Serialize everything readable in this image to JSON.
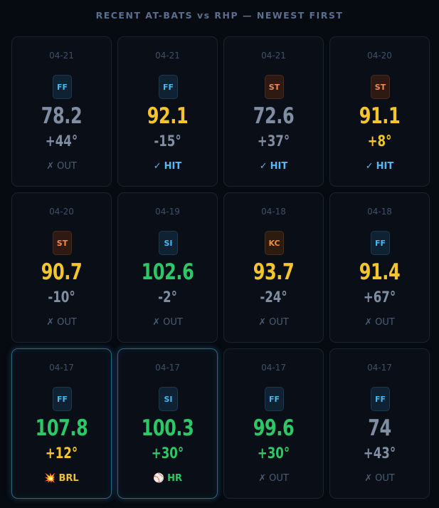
{
  "header": {
    "title": "RECENT AT-BATS vs RHP — NEWEST FIRST"
  },
  "legend_colors": {
    "ev_soft": "#7f8ea3",
    "ev_medium": "#f5c52b",
    "ev_hard": "#2cc766",
    "pitch_fastball": "#48b6ef",
    "pitch_breaking": "#f08a4f"
  },
  "at_bats": [
    {
      "date": "04-21",
      "pitch": "FF",
      "ev": "78.2",
      "la": "+44°",
      "result_icon": "✗",
      "result": "OUT",
      "ev_tier": "gray",
      "la_tier": "gray",
      "result_type": "out",
      "highlight": false
    },
    {
      "date": "04-21",
      "pitch": "FF",
      "ev": "92.1",
      "la": "-15°",
      "result_icon": "✓",
      "result": "HIT",
      "ev_tier": "yellow",
      "la_tier": "gray",
      "result_type": "hit",
      "highlight": false
    },
    {
      "date": "04-21",
      "pitch": "ST",
      "ev": "72.6",
      "la": "+37°",
      "result_icon": "✓",
      "result": "HIT",
      "ev_tier": "gray",
      "la_tier": "gray",
      "result_type": "hit",
      "highlight": false
    },
    {
      "date": "04-20",
      "pitch": "ST",
      "ev": "91.1",
      "la": "+8°",
      "result_icon": "✓",
      "result": "HIT",
      "ev_tier": "yellow",
      "la_tier": "yellow",
      "result_type": "hit",
      "highlight": false
    },
    {
      "date": "04-20",
      "pitch": "ST",
      "ev": "90.7",
      "la": "-10°",
      "result_icon": "✗",
      "result": "OUT",
      "ev_tier": "yellow",
      "la_tier": "gray",
      "result_type": "out",
      "highlight": false
    },
    {
      "date": "04-19",
      "pitch": "SI",
      "ev": "102.6",
      "la": "-2°",
      "result_icon": "✗",
      "result": "OUT",
      "ev_tier": "green",
      "la_tier": "gray",
      "result_type": "out",
      "highlight": false
    },
    {
      "date": "04-18",
      "pitch": "KC",
      "ev": "93.7",
      "la": "-24°",
      "result_icon": "✗",
      "result": "OUT",
      "ev_tier": "yellow",
      "la_tier": "gray",
      "result_type": "out",
      "highlight": false
    },
    {
      "date": "04-18",
      "pitch": "FF",
      "ev": "91.4",
      "la": "+67°",
      "result_icon": "✗",
      "result": "OUT",
      "ev_tier": "yellow",
      "la_tier": "gray",
      "result_type": "out",
      "highlight": false
    },
    {
      "date": "04-17",
      "pitch": "FF",
      "ev": "107.8",
      "la": "+12°",
      "result_icon": "💥",
      "result": "BRL",
      "ev_tier": "green",
      "la_tier": "yellow",
      "result_type": "brl",
      "highlight": true
    },
    {
      "date": "04-17",
      "pitch": "SI",
      "ev": "100.3",
      "la": "+30°",
      "result_icon": "⚾",
      "result": "HR",
      "ev_tier": "green",
      "la_tier": "green",
      "result_type": "hr",
      "highlight": true
    },
    {
      "date": "04-17",
      "pitch": "FF",
      "ev": "99.6",
      "la": "+30°",
      "result_icon": "✗",
      "result": "OUT",
      "ev_tier": "green",
      "la_tier": "green",
      "result_type": "out",
      "highlight": false
    },
    {
      "date": "04-17",
      "pitch": "FF",
      "ev": "74",
      "la": "+43°",
      "result_icon": "✗",
      "result": "OUT",
      "ev_tier": "gray",
      "la_tier": "gray",
      "result_type": "out",
      "highlight": false
    }
  ]
}
